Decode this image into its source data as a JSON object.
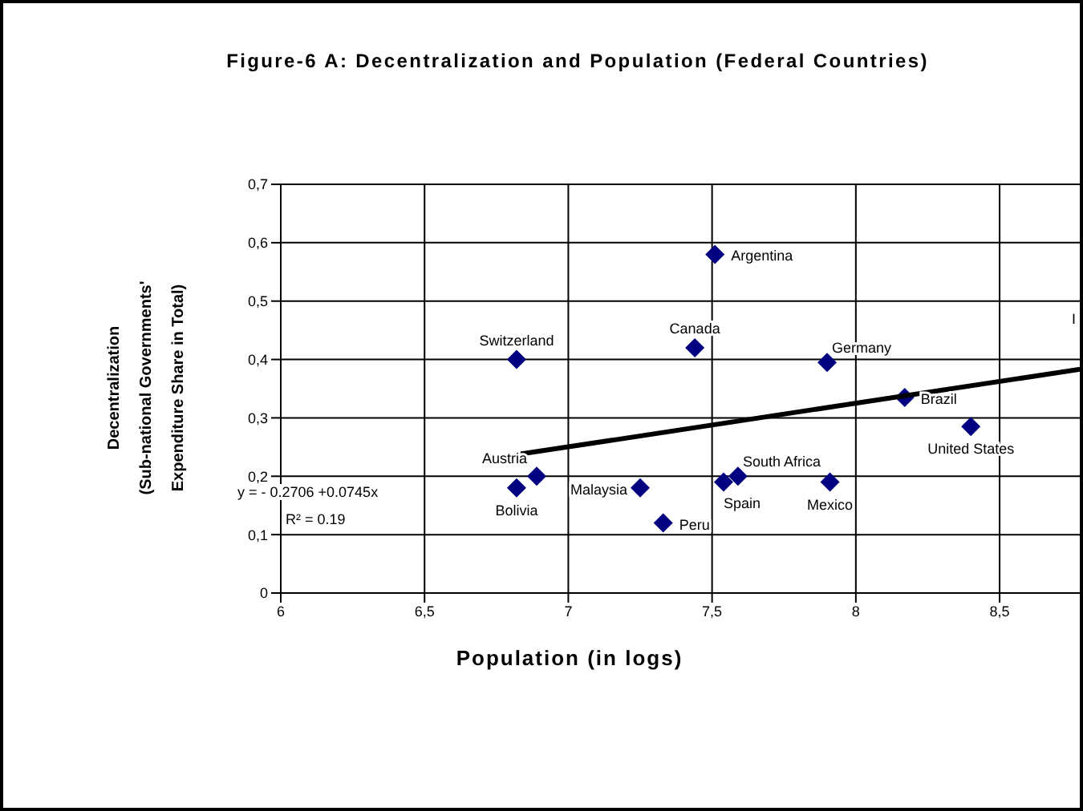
{
  "chart_data": {
    "type": "scatter",
    "title": "Figure-6 A: Decentralization and Population (Federal Countries)",
    "xlabel": "Population (in logs)",
    "ylabel": "Decentralization\n(Sub-national Governments'\nExpenditure Share in Total)",
    "xlim": [
      6,
      8.79
    ],
    "xticks": [
      6,
      {
        "value": 6.5,
        "label": "6,5"
      },
      7,
      {
        "value": 7.5,
        "label": "7,5"
      },
      8,
      {
        "value": 8.5,
        "label": "8,5"
      }
    ],
    "ylim": [
      0,
      0.7
    ],
    "yticks": [
      0,
      {
        "value": 0.1,
        "label": "0,1"
      },
      {
        "value": 0.2,
        "label": "0,2"
      },
      {
        "value": 0.3,
        "label": "0,3"
      },
      {
        "value": 0.4,
        "label": "0,4"
      },
      {
        "value": 0.5,
        "label": "0,5"
      },
      {
        "value": 0.6,
        "label": "0,6"
      },
      {
        "value": 0.7,
        "label": "0,7"
      }
    ],
    "grid": true,
    "marker": "diamond",
    "series": [
      {
        "name": "Argentina",
        "color": "#000080",
        "x": [
          7.51
        ],
        "values": [
          0.58
        ]
      },
      {
        "name": "Switzerland",
        "color": "#000080",
        "x": [
          6.82
        ],
        "values": [
          0.4
        ]
      },
      {
        "name": "Canada",
        "color": "#000080",
        "x": [
          7.44
        ],
        "values": [
          0.42
        ]
      },
      {
        "name": "Germany",
        "color": "#000080",
        "x": [
          7.9
        ],
        "values": [
          0.395
        ]
      },
      {
        "name": "Brazil",
        "color": "#000080",
        "x": [
          8.17
        ],
        "values": [
          0.335
        ]
      },
      {
        "name": "United States",
        "color": "#000080",
        "x": [
          8.4
        ],
        "values": [
          0.285
        ]
      },
      {
        "name": "Austria",
        "color": "#000080",
        "x": [
          6.89
        ],
        "values": [
          0.2
        ]
      },
      {
        "name": "Bolivia",
        "color": "#000080",
        "x": [
          6.82
        ],
        "values": [
          0.18
        ]
      },
      {
        "name": "Malaysia",
        "color": "#000080",
        "x": [
          7.25
        ],
        "values": [
          0.18
        ]
      },
      {
        "name": "Peru",
        "color": "#000080",
        "x": [
          7.33
        ],
        "values": [
          0.12
        ]
      },
      {
        "name": "South Africa",
        "color": "#000080",
        "x": [
          7.59
        ],
        "values": [
          0.2
        ]
      },
      {
        "name": "Spain",
        "color": "#000080",
        "x": [
          7.54
        ],
        "values": [
          0.19
        ]
      },
      {
        "name": "Mexico",
        "color": "#000080",
        "x": [
          7.91
        ],
        "values": [
          0.19
        ]
      },
      {
        "type": "line",
        "color": "#000000",
        "x": [
          6.82,
          8.79
        ],
        "values": [
          0.237,
          0.384
        ],
        "marker": "none"
      }
    ],
    "annotations": [
      "y = - 0.2706 +0.0745x",
      "R² = 0.19",
      "I"
    ]
  }
}
